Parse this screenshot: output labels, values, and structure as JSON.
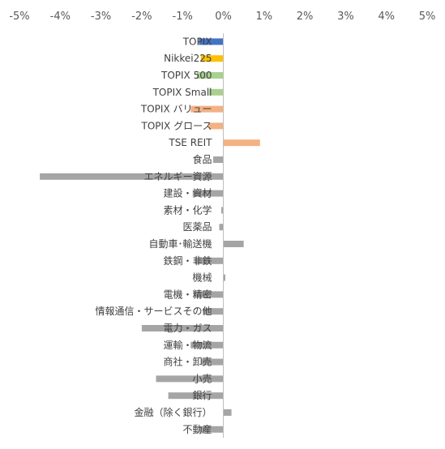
{
  "chart_data": {
    "type": "bar",
    "orientation": "horizontal",
    "axis_position": "top",
    "xlim": [
      -5,
      5
    ],
    "xticks": [
      -5,
      -4,
      -3,
      -2,
      -1,
      0,
      1,
      2,
      3,
      4,
      5
    ],
    "xtick_labels": [
      "-5%",
      "-4%",
      "-3%",
      "-2%",
      "-1%",
      "0%",
      "1%",
      "2%",
      "3%",
      "4%",
      "5%"
    ],
    "grid": false,
    "legend": "none",
    "categories": [
      "TOPIX",
      "Nikkei225",
      "TOPIX 500",
      "TOPIX Small",
      "TOPIX バリュー",
      "TOPIX グロース",
      "TSE REIT",
      "食品",
      "エネルギー資源",
      "建設・資材",
      "素材・化学",
      "医薬品",
      "自動車･輸送機",
      "鉄鋼・非鉄",
      "機械",
      "電機・精密",
      "情報通信・サービスその他",
      "電力・ガス",
      "運輸・物流",
      "商社・卸売",
      "小売",
      "銀行",
      "金融（除く銀行）",
      "不動産"
    ],
    "values": [
      -0.6,
      -0.55,
      -0.65,
      -0.35,
      -0.8,
      -0.35,
      0.9,
      -0.25,
      -4.5,
      -0.75,
      -0.05,
      -0.1,
      0.5,
      -0.7,
      0.05,
      -0.7,
      -0.5,
      -2.0,
      -0.8,
      -0.55,
      -1.65,
      -1.35,
      0.2,
      -0.6
    ],
    "colors": [
      "#4472C4",
      "#FFC000",
      "#A9D18E",
      "#A9D18E",
      "#F4B183",
      "#F4B183",
      "#F4B183",
      "#A5A5A5",
      "#A5A5A5",
      "#A5A5A5",
      "#A5A5A5",
      "#A5A5A5",
      "#A5A5A5",
      "#A5A5A5",
      "#A5A5A5",
      "#A5A5A5",
      "#A5A5A5",
      "#A5A5A5",
      "#A5A5A5",
      "#A5A5A5",
      "#A5A5A5",
      "#A5A5A5",
      "#A5A5A5",
      "#A5A5A5"
    ]
  }
}
